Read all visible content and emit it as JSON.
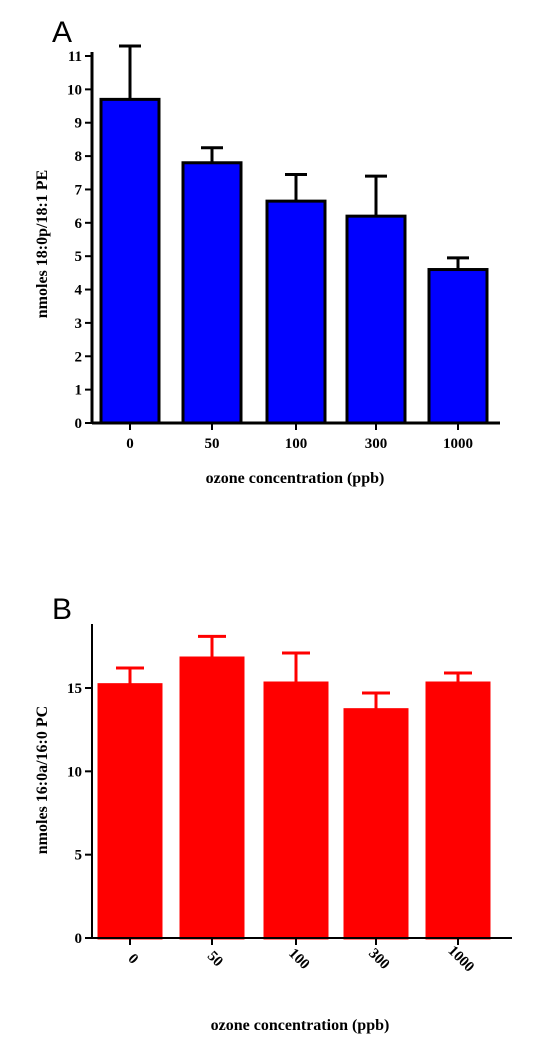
{
  "chart_data": [
    {
      "panel": "A",
      "type": "bar",
      "categories": [
        "0",
        "50",
        "100",
        "300",
        "1000"
      ],
      "values": [
        9.7,
        7.8,
        6.65,
        6.2,
        4.6
      ],
      "errors": [
        1.6,
        0.45,
        0.8,
        1.2,
        0.35
      ],
      "xlabel": "ozone concentration (ppb)",
      "ylabel": "nmoles 18:0p/18:1 PE",
      "ylim": [
        0,
        11
      ],
      "yticks": [
        0,
        1,
        2,
        3,
        4,
        5,
        6,
        7,
        8,
        9,
        10,
        11
      ],
      "bar_color": "#0000ff",
      "bar_stroke": "#000000",
      "error_color": "#000000",
      "tick_rotation": 0
    },
    {
      "panel": "B",
      "type": "bar",
      "categories": [
        "0",
        "50",
        "100",
        "300",
        "1000"
      ],
      "values": [
        15.2,
        16.8,
        15.3,
        13.7,
        15.3
      ],
      "errors": [
        1.0,
        1.3,
        1.8,
        1.0,
        0.6
      ],
      "xlabel": "ozone concentration (ppb)",
      "ylabel": "nmoles 16:0a/16:0 PC",
      "ylim": [
        0,
        18.6
      ],
      "yticks": [
        0,
        5,
        10,
        15
      ],
      "bar_color": "#ff0000",
      "bar_stroke": "#ff0000",
      "error_color": "#ff0000",
      "tick_rotation": 45
    }
  ]
}
